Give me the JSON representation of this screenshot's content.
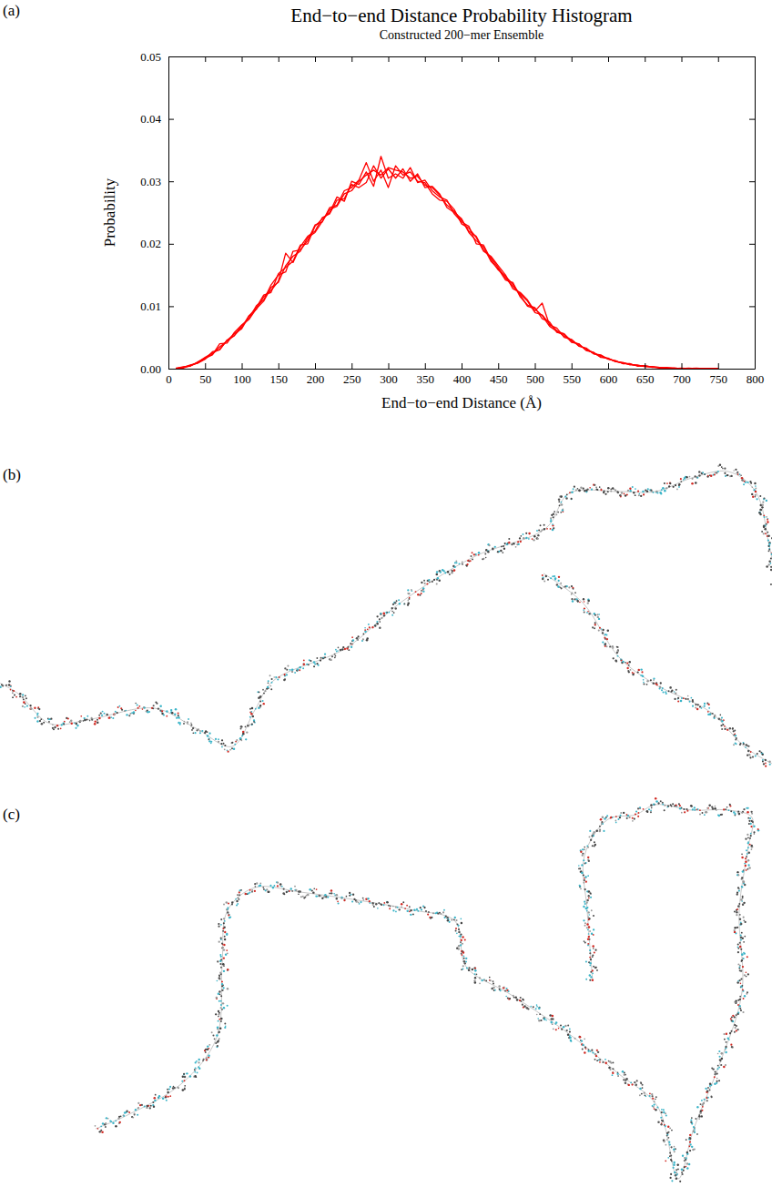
{
  "panel_labels": [
    "(a)",
    "(b)",
    "(c)"
  ],
  "chart_data": {
    "type": "line",
    "title": "End−to−end Distance Probability Histogram",
    "subtitle": "Constructed 200−mer Ensemble",
    "x_label": "End−to−end Distance (Å)",
    "y_label": "Probability",
    "xlim": [
      0,
      800
    ],
    "ylim": [
      0,
      0.05
    ],
    "xticks": [
      0,
      50,
      100,
      150,
      200,
      250,
      300,
      350,
      400,
      450,
      500,
      550,
      600,
      650,
      700,
      750,
      800
    ],
    "yticks": [
      {
        "value": 0,
        "label": "0.00"
      },
      {
        "value": 0.01,
        "label": "0.01"
      },
      {
        "value": 0.02,
        "label": "0.02"
      },
      {
        "value": 0.03,
        "label": "0.03"
      },
      {
        "value": 0.04,
        "label": "0.04"
      },
      {
        "value": 0.05,
        "label": "0.05"
      }
    ],
    "x": [
      10,
      20,
      30,
      40,
      50,
      60,
      70,
      80,
      90,
      100,
      110,
      120,
      130,
      140,
      150,
      160,
      170,
      180,
      190,
      200,
      210,
      220,
      230,
      240,
      250,
      260,
      270,
      280,
      290,
      300,
      310,
      320,
      330,
      340,
      350,
      360,
      370,
      380,
      390,
      400,
      410,
      420,
      430,
      440,
      450,
      460,
      470,
      480,
      490,
      500,
      510,
      520,
      530,
      540,
      550,
      560,
      570,
      580,
      590,
      600,
      610,
      620,
      630,
      640,
      650,
      660,
      670,
      680,
      690,
      700,
      710,
      720,
      730,
      740,
      750
    ],
    "series": [
      {
        "color": "#ff0000",
        "values": [
          0.0,
          0.0003,
          0.0004,
          0.0011,
          0.0017,
          0.0022,
          0.004,
          0.0041,
          0.0058,
          0.007,
          0.008,
          0.0101,
          0.011,
          0.0134,
          0.015,
          0.0155,
          0.0188,
          0.019,
          0.0205,
          0.023,
          0.0235,
          0.0258,
          0.0262,
          0.0285,
          0.029,
          0.0302,
          0.033,
          0.03,
          0.0318,
          0.029,
          0.0325,
          0.031,
          0.0315,
          0.03,
          0.0298,
          0.028,
          0.027,
          0.0268,
          0.0255,
          0.0232,
          0.0225,
          0.021,
          0.0188,
          0.018,
          0.0165,
          0.015,
          0.0128,
          0.0122,
          0.011,
          0.0092,
          0.0105,
          0.007,
          0.0065,
          0.005,
          0.0047,
          0.0036,
          0.0033,
          0.0024,
          0.0022,
          0.0015,
          0.0013,
          0.0008,
          0.0008,
          0.0004,
          0.0005,
          0.0002,
          0.0002,
          0.0001,
          0.0001,
          0.0,
          0.0001,
          0.0,
          0.0,
          0.0,
          0.0
        ]
      },
      {
        "color": "#ff0000",
        "values": [
          0.0001,
          0.0002,
          0.0006,
          0.0009,
          0.0015,
          0.0027,
          0.003,
          0.0046,
          0.0053,
          0.0066,
          0.0085,
          0.0095,
          0.0115,
          0.0125,
          0.014,
          0.0185,
          0.017,
          0.0195,
          0.0212,
          0.022,
          0.0242,
          0.0248,
          0.027,
          0.0272,
          0.0295,
          0.029,
          0.0298,
          0.0325,
          0.0305,
          0.032,
          0.0305,
          0.032,
          0.03,
          0.0312,
          0.029,
          0.0292,
          0.028,
          0.0258,
          0.025,
          0.024,
          0.0218,
          0.0205,
          0.0195,
          0.0172,
          0.016,
          0.0142,
          0.0138,
          0.0115,
          0.0102,
          0.0098,
          0.008,
          0.0075,
          0.0058,
          0.0055,
          0.0042,
          0.004,
          0.0029,
          0.0026,
          0.0018,
          0.0017,
          0.0011,
          0.001,
          0.0006,
          0.0006,
          0.0003,
          0.0003,
          0.0001,
          0.0002,
          0.0,
          0.0001,
          0.0,
          0.0,
          0.0,
          0.0,
          0.0
        ]
      },
      {
        "color": "#ff0000",
        "values": [
          0.0,
          0.0001,
          0.0005,
          0.001,
          0.0018,
          0.0025,
          0.0031,
          0.0045,
          0.0056,
          0.0064,
          0.0084,
          0.0098,
          0.0118,
          0.0122,
          0.0152,
          0.0162,
          0.0172,
          0.0198,
          0.02,
          0.0228,
          0.024,
          0.025,
          0.0275,
          0.0268,
          0.03,
          0.0295,
          0.0315,
          0.0292,
          0.034,
          0.0305,
          0.0312,
          0.0305,
          0.0322,
          0.0298,
          0.0302,
          0.0285,
          0.0275,
          0.027,
          0.0248,
          0.0235,
          0.0228,
          0.02,
          0.0198,
          0.0175,
          0.0158,
          0.0148,
          0.0135,
          0.0118,
          0.01,
          0.0096,
          0.0085,
          0.0068,
          0.006,
          0.0056,
          0.0044,
          0.0039,
          0.003,
          0.0026,
          0.0019,
          0.0016,
          0.0012,
          0.0009,
          0.0007,
          0.0005,
          0.0004,
          0.0003,
          0.0002,
          0.0001,
          0.0001,
          0.0,
          0.0,
          0.0001,
          0.0,
          0.0,
          0.0
        ]
      },
      {
        "color": "#ff0000",
        "values": [
          0.0,
          0.0002,
          0.0005,
          0.0009,
          0.0016,
          0.0023,
          0.0035,
          0.0044,
          0.0053,
          0.0069,
          0.0079,
          0.0096,
          0.0108,
          0.013,
          0.0138,
          0.0165,
          0.018,
          0.0188,
          0.021,
          0.0218,
          0.0236,
          0.0255,
          0.026,
          0.028,
          0.0285,
          0.03,
          0.031,
          0.0318,
          0.031,
          0.0322,
          0.0318,
          0.0315,
          0.0305,
          0.0308,
          0.0294,
          0.029,
          0.0278,
          0.0262,
          0.0252,
          0.0238,
          0.022,
          0.0212,
          0.019,
          0.0178,
          0.0162,
          0.0145,
          0.0132,
          0.012,
          0.0108,
          0.009,
          0.0086,
          0.0072,
          0.0061,
          0.0052,
          0.0046,
          0.0037,
          0.0032,
          0.0024,
          0.0021,
          0.0016,
          0.0012,
          0.0009,
          0.0007,
          0.0005,
          0.0004,
          0.0003,
          0.0002,
          0.0001,
          0.0001,
          0.0,
          0.0,
          0.0,
          0.0,
          0.0,
          0.0
        ]
      }
    ]
  }
}
